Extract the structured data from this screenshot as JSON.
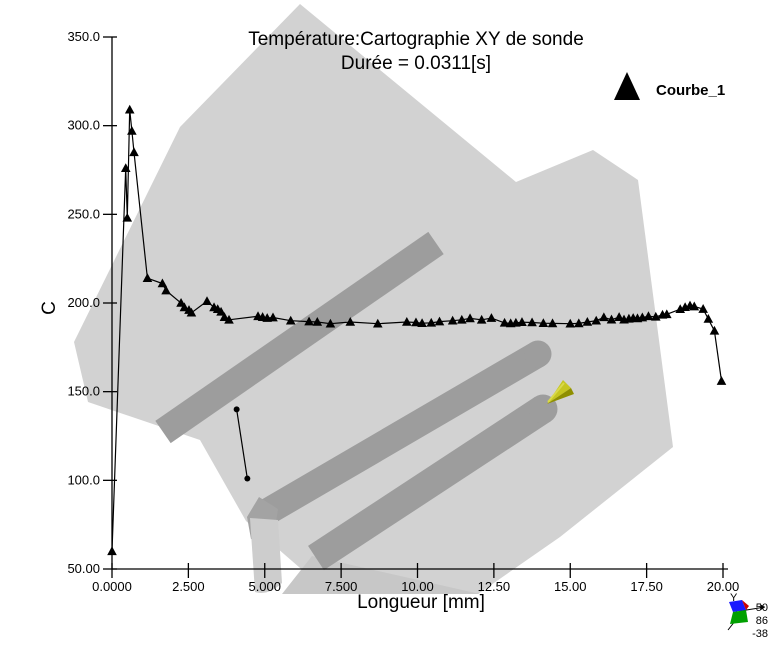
{
  "window": {
    "description": "Simulation post-processor curve plot over faded 3D part geometry"
  },
  "header": {
    "title": "Température:Cartographie XY de sonde",
    "subtitle": "Durée =  0.0311[s]"
  },
  "legend": {
    "label": "Courbe_1",
    "marker": "triangle"
  },
  "triad": {
    "y_label": "Y",
    "values": [
      "50",
      "86",
      "-38"
    ]
  },
  "colors": {
    "curve": "#000000",
    "part_light": "#d2d2d2",
    "part_mid": "#c7c7c7",
    "part_dark": "#9d9d9d",
    "part_dark2": "#a3a3a3",
    "band_light": "#cdcdcd",
    "cone_main": "#c6c620",
    "cone_shadow": "#8f8f00",
    "cone_highlight": "#d9d94a",
    "triad_blue": "#1a1aff",
    "triad_green": "#00a000",
    "triad_red": "#cc0000"
  },
  "chart_data": {
    "type": "line",
    "title": "Température:Cartographie XY de sonde",
    "subtitle": "Durée =  0.0311[s]",
    "xlabel": "Longueur [mm]",
    "ylabel": "C",
    "xlim": [
      0,
      20
    ],
    "ylim": [
      50,
      350
    ],
    "grid": false,
    "legend_position": "top-right",
    "x_ticks": [
      "0.0000",
      "2.500",
      "5.000",
      "7.500",
      "10.00",
      "12.50",
      "15.00",
      "17.50",
      "20.00"
    ],
    "y_ticks": [
      "50.00",
      "100.0",
      "150.0",
      "200.0",
      "250.0",
      "300.0",
      "350.0"
    ],
    "series": [
      {
        "name": "Courbe_1",
        "marker": "triangle",
        "color": "#000000",
        "points": [
          [
            0.0,
            60
          ],
          [
            0.45,
            276
          ],
          [
            0.5,
            248
          ],
          [
            0.58,
            309
          ],
          [
            0.65,
            297
          ],
          [
            0.72,
            285
          ],
          [
            1.16,
            214
          ],
          [
            1.65,
            211
          ],
          [
            1.77,
            207
          ],
          [
            2.26,
            200
          ],
          [
            2.37,
            197.5
          ],
          [
            2.52,
            196
          ],
          [
            2.6,
            194.5
          ],
          [
            3.11,
            201
          ],
          [
            3.34,
            197.5
          ],
          [
            3.46,
            196.5
          ],
          [
            3.57,
            195
          ],
          [
            3.68,
            192
          ],
          [
            3.83,
            190.5
          ],
          [
            4.78,
            192.5
          ],
          [
            4.93,
            192
          ],
          [
            5.08,
            191.5
          ],
          [
            5.27,
            191.8
          ],
          [
            5.85,
            190
          ],
          [
            6.45,
            189.5
          ],
          [
            6.72,
            189.3
          ],
          [
            7.15,
            188.3
          ],
          [
            7.8,
            189.3
          ],
          [
            8.7,
            188.3
          ],
          [
            9.65,
            189.3
          ],
          [
            9.95,
            189.0
          ],
          [
            10.15,
            188.6
          ],
          [
            10.45,
            188.8
          ],
          [
            10.72,
            189.5
          ],
          [
            11.15,
            190.0
          ],
          [
            11.45,
            190.5
          ],
          [
            11.72,
            191.3
          ],
          [
            12.1,
            190.5
          ],
          [
            12.42,
            191.5
          ],
          [
            12.85,
            188.8
          ],
          [
            13.05,
            188.5
          ],
          [
            13.22,
            188.8
          ],
          [
            13.42,
            189.2
          ],
          [
            13.75,
            189.0
          ],
          [
            14.12,
            188.6
          ],
          [
            14.42,
            188.5
          ],
          [
            15.0,
            188.3
          ],
          [
            15.28,
            188.5
          ],
          [
            15.56,
            189.3
          ],
          [
            15.85,
            190.0
          ],
          [
            16.1,
            191.9
          ],
          [
            16.35,
            190.6
          ],
          [
            16.6,
            192.0
          ],
          [
            16.76,
            190.6
          ],
          [
            16.92,
            191.1
          ],
          [
            17.06,
            191.5
          ],
          [
            17.2,
            191.3
          ],
          [
            17.36,
            191.8
          ],
          [
            17.56,
            192.5
          ],
          [
            17.8,
            192.2
          ],
          [
            18.02,
            193.3
          ],
          [
            18.16,
            193.6
          ],
          [
            18.6,
            196.5
          ],
          [
            18.76,
            197.6
          ],
          [
            18.92,
            198.5
          ],
          [
            19.06,
            198.0
          ],
          [
            19.35,
            196.6
          ],
          [
            19.52,
            191.0
          ],
          [
            19.72,
            184.3
          ],
          [
            19.95,
            156.0
          ]
        ]
      }
    ],
    "probe_segment": {
      "description": "probe location segment drawn in scene",
      "points": [
        [
          4.08,
          140
        ],
        [
          4.43,
          101
        ]
      ]
    }
  }
}
